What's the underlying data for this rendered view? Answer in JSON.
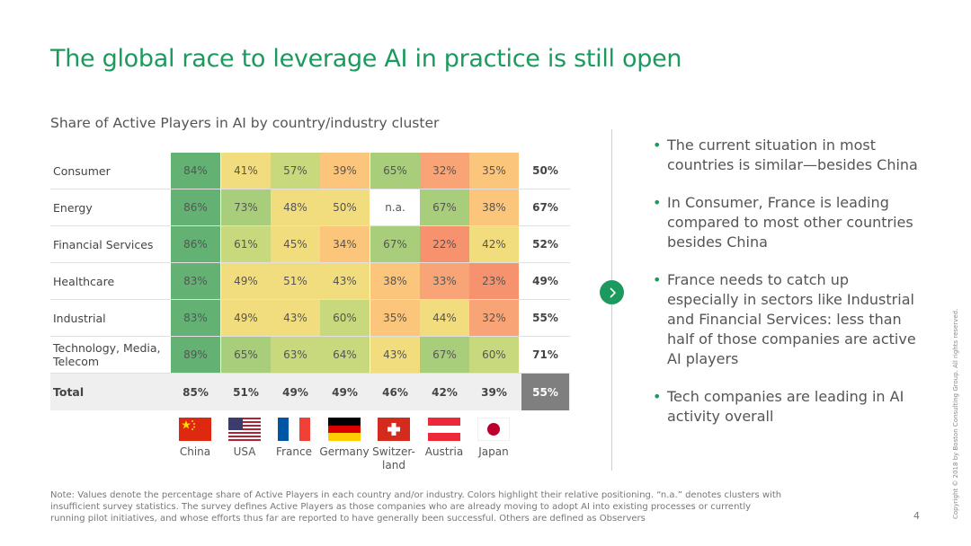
{
  "title": "The global race to leverage AI in practice is still open",
  "subtitle": "Share of Active Players in AI by country/industry cluster",
  "chart_data": {
    "type": "heatmap",
    "columns": [
      "China",
      "USA",
      "France",
      "Germany",
      "Switzer-land",
      "Austria",
      "Japan"
    ],
    "rows": [
      {
        "label": "Consumer",
        "values": [
          "84%",
          "41%",
          "57%",
          "39%",
          "65%",
          "32%",
          "35%"
        ],
        "avg": "50%"
      },
      {
        "label": "Energy",
        "values": [
          "86%",
          "73%",
          "48%",
          "50%",
          "n.a.",
          "67%",
          "38%"
        ],
        "avg": "67%"
      },
      {
        "label": "Financial Services",
        "values": [
          "86%",
          "61%",
          "45%",
          "34%",
          "67%",
          "22%",
          "42%"
        ],
        "avg": "52%"
      },
      {
        "label": "Healthcare",
        "values": [
          "83%",
          "49%",
          "51%",
          "43%",
          "38%",
          "33%",
          "23%"
        ],
        "avg": "49%"
      },
      {
        "label": "Industrial",
        "values": [
          "83%",
          "49%",
          "43%",
          "60%",
          "35%",
          "44%",
          "32%"
        ],
        "avg": "55%"
      },
      {
        "label": "Technology, Media, Telecom",
        "values": [
          "89%",
          "65%",
          "63%",
          "64%",
          "43%",
          "67%",
          "60%"
        ],
        "avg": "71%"
      }
    ],
    "total": {
      "label": "Total",
      "values": [
        "85%",
        "51%",
        "49%",
        "49%",
        "46%",
        "42%",
        "39%"
      ],
      "avg": "55%"
    },
    "colors": {
      "very_high": "#63b274",
      "high": "#a8cd7b",
      "upper_mid": "#c8d87c",
      "mid": "#f2dd7e",
      "lower_mid": "#fbc57c",
      "low": "#f9a476",
      "very_low": "#f6926e",
      "na": "#ffffff",
      "avg_total": "#7f7f7f"
    }
  },
  "flags": [
    {
      "country": "China",
      "icon": "china-flag-icon"
    },
    {
      "country": "USA",
      "icon": "usa-flag-icon"
    },
    {
      "country": "France",
      "icon": "france-flag-icon"
    },
    {
      "country": "Germany",
      "icon": "germany-flag-icon"
    },
    {
      "country": "Switzer-land",
      "icon": "switzerland-flag-icon"
    },
    {
      "country": "Austria",
      "icon": "austria-flag-icon"
    },
    {
      "country": "Japan",
      "icon": "japan-flag-icon"
    }
  ],
  "bullets": [
    "The current situation in most countries is similar—besides China",
    "In Consumer, France is leading compared to most other countries besides China",
    "France needs to catch up especially in sectors like Industrial and Financial Services: less than half of those companies are active AI players",
    "Tech companies are leading in AI activity overall"
  ],
  "note": "Note: Values denote the percentage share of Active Players in each country and/or industry. Colors highlight their relative positioning. “n.a.” denotes clusters with insufficient survey statistics. The survey defines Active Players as those companies who are already moving to adopt AI into existing processes or currently running pilot initiatives, and whose efforts thus far are reported to have generally been successful. Others are defined as Observers",
  "page_number": "4",
  "copyright": "Copyright © 2018 by Boston Consulting Group. All rights reserved.",
  "accent_color": "#1c9a5e"
}
